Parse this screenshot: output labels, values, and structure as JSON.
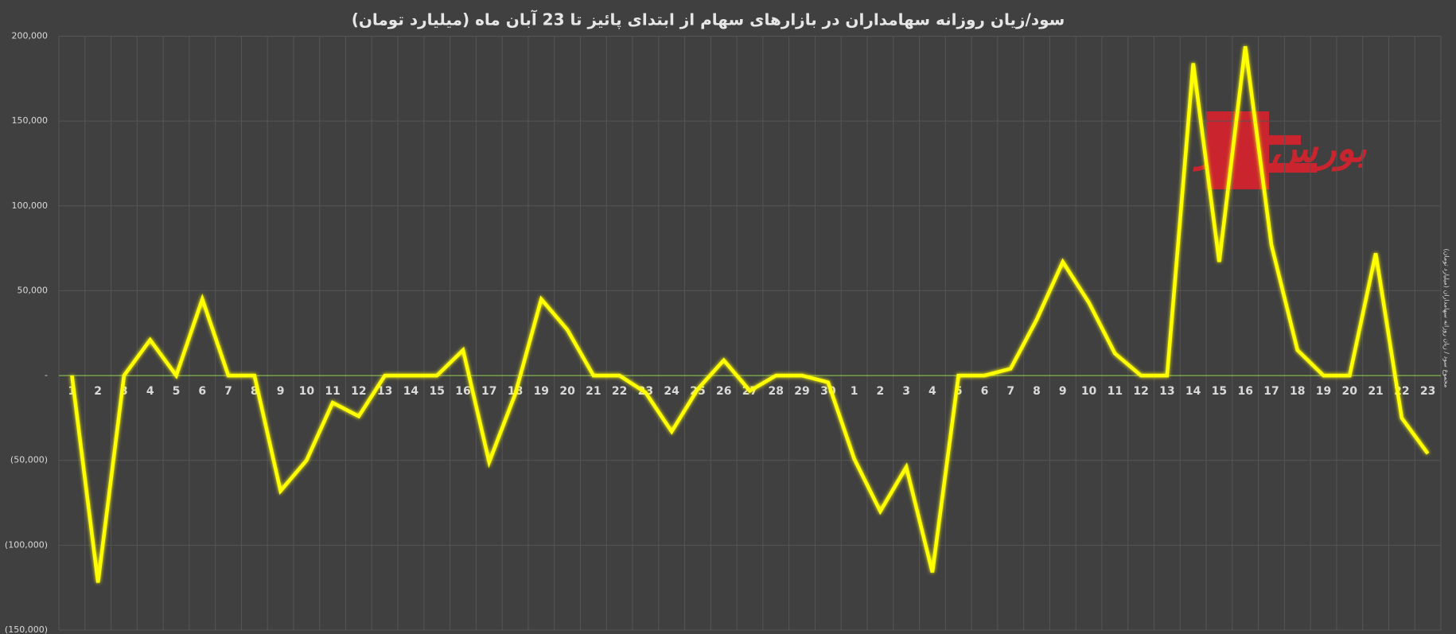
{
  "chart_data": {
    "type": "line",
    "title": "سود/زیان روزانه سهامداران در بازارهای سهام از ابتدای پائیز تا 23 آبان ماه (میلیارد تومان)",
    "y_label": "مجموع سود / زیان روزانه سهامداران (میلیارد تومان)",
    "watermark": "بورس نیوز",
    "categories": [
      "1",
      "2",
      "3",
      "4",
      "5",
      "6",
      "7",
      "8",
      "9",
      "10",
      "11",
      "12",
      "13",
      "14",
      "15",
      "16",
      "17",
      "18",
      "19",
      "20",
      "21",
      "22",
      "23",
      "24",
      "25",
      "26",
      "27",
      "28",
      "29",
      "30",
      "1",
      "2",
      "3",
      "4",
      "5",
      "6",
      "7",
      "8",
      "9",
      "10",
      "11",
      "12",
      "13",
      "14",
      "15",
      "16",
      "17",
      "18",
      "19",
      "20",
      "21",
      "22",
      "23"
    ],
    "values": [
      0,
      -122000,
      0,
      21000,
      0,
      45000,
      0,
      0,
      -68000,
      -50000,
      -16000,
      -24000,
      0,
      0,
      0,
      15000,
      -51000,
      -11000,
      45000,
      27000,
      0,
      0,
      -10000,
      -33000,
      -8000,
      9000,
      -9000,
      0,
      0,
      -4000,
      -49000,
      -80000,
      -54000,
      -116000,
      0,
      0,
      4000,
      33000,
      67000,
      43000,
      13000,
      0,
      0,
      184000,
      67000,
      194000,
      77000,
      15000,
      0,
      0,
      72000,
      -25000,
      -46000
    ],
    "color": "#ffff00",
    "zero_line_color": "#92d050",
    "ylim": [
      -150000,
      200000
    ],
    "yticks": [
      {
        "value": -150000,
        "label": "(150,000)"
      },
      {
        "value": -100000,
        "label": "(100,000)"
      },
      {
        "value": -50000,
        "label": "(50,000)"
      },
      {
        "value": 0,
        "label": "-"
      },
      {
        "value": 50000,
        "label": "50,000"
      },
      {
        "value": 100000,
        "label": "100,000"
      },
      {
        "value": 150000,
        "label": "150,000"
      },
      {
        "value": 200000,
        "label": "200,000"
      }
    ],
    "grid": true
  }
}
